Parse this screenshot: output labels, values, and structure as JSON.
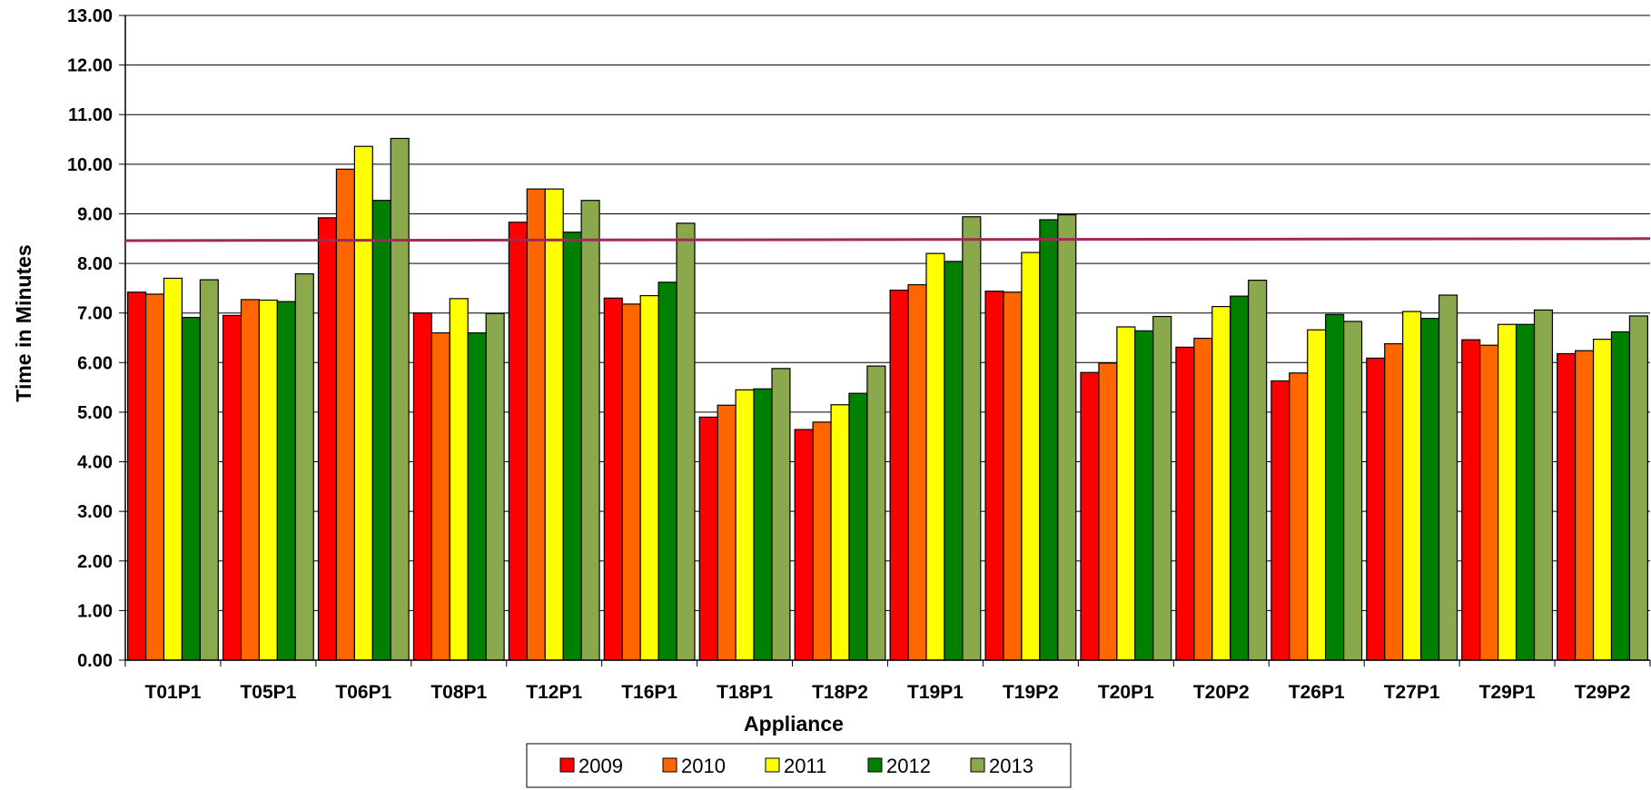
{
  "chart_data": {
    "type": "bar",
    "title": "",
    "xlabel": "Appliance",
    "ylabel": "Time in Minutes",
    "ylim": [
      0,
      13
    ],
    "yticks": [
      "0.00",
      "1.00",
      "2.00",
      "3.00",
      "4.00",
      "5.00",
      "6.00",
      "7.00",
      "8.00",
      "9.00",
      "10.00",
      "11.00",
      "12.00",
      "13.00"
    ],
    "categories": [
      "T01P1",
      "T05P1",
      "T06P1",
      "T08P1",
      "T12P1",
      "T16P1",
      "T18P1",
      "T18P2",
      "T19P1",
      "T19P2",
      "T20P1",
      "T20P2",
      "T26P1",
      "T27P1",
      "T29P1",
      "T29P2"
    ],
    "series": [
      {
        "name": "2009",
        "color": "#ff0000",
        "values": [
          7.42,
          6.95,
          8.92,
          7.0,
          8.83,
          7.3,
          4.9,
          4.65,
          7.46,
          7.44,
          5.8,
          6.31,
          5.63,
          6.09,
          6.46,
          6.18
        ]
      },
      {
        "name": "2010",
        "color": "#ff6600",
        "values": [
          7.38,
          7.27,
          9.9,
          6.6,
          9.5,
          7.18,
          5.14,
          4.8,
          7.57,
          7.42,
          5.99,
          6.49,
          5.79,
          6.38,
          6.35,
          6.24
        ]
      },
      {
        "name": "2011",
        "color": "#ffff00",
        "values": [
          7.7,
          7.26,
          10.36,
          7.29,
          9.5,
          7.35,
          5.45,
          5.15,
          8.2,
          8.22,
          6.72,
          7.13,
          6.66,
          7.03,
          6.77,
          6.47
        ]
      },
      {
        "name": "2012",
        "color": "#008000",
        "values": [
          6.91,
          7.23,
          9.27,
          6.6,
          8.63,
          7.62,
          5.47,
          5.38,
          8.04,
          8.88,
          6.64,
          7.34,
          6.97,
          6.89,
          6.77,
          6.62
        ]
      },
      {
        "name": "2013",
        "color": "#8aa84c",
        "values": [
          7.67,
          7.79,
          10.52,
          6.99,
          9.27,
          8.81,
          5.88,
          5.93,
          8.94,
          8.98,
          6.93,
          7.66,
          6.83,
          7.36,
          7.06,
          6.94
        ]
      }
    ],
    "reference_line": {
      "color": "#a0295a",
      "y_start": 8.46,
      "y_end": 8.5
    },
    "grid": true,
    "legend_position": "bottom"
  }
}
